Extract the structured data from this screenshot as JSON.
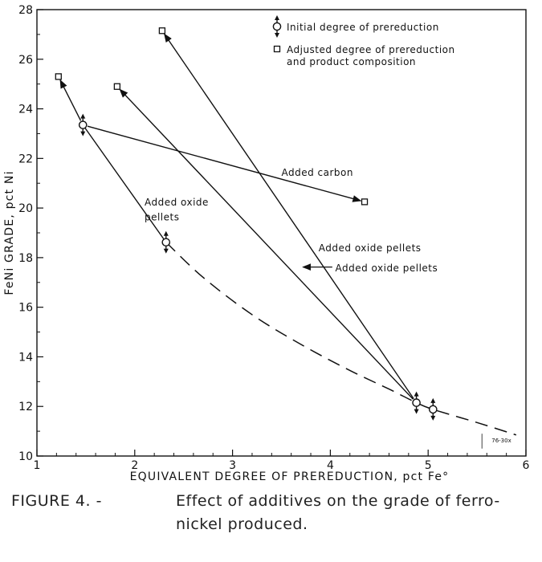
{
  "chart_data": {
    "type": "scatter",
    "xlabel": "EQUIVALENT DEGREE OF PREREDUCTION, pct Fe°",
    "ylabel": "FeNi GRADE, pct Ni",
    "xlim": [
      1,
      6
    ],
    "ylim": [
      10,
      28
    ],
    "x_ticks": [
      1,
      2,
      3,
      4,
      5,
      6
    ],
    "y_ticks": [
      10,
      12,
      14,
      16,
      18,
      20,
      22,
      24,
      26,
      28
    ],
    "grid": false,
    "legend_position": "top-right",
    "series": [
      {
        "name": "Initial degree of prereduction",
        "marker": "circle-with-arrows",
        "points": [
          [
            1.47,
            23.35
          ],
          [
            2.32,
            18.62
          ],
          [
            4.88,
            12.15
          ],
          [
            5.05,
            11.88
          ]
        ]
      },
      {
        "name": "Adjusted degree of prereduction and product composition",
        "marker": "square",
        "points": [
          [
            1.22,
            25.3
          ],
          [
            1.82,
            24.9
          ],
          [
            2.28,
            27.15
          ],
          [
            4.35,
            20.25
          ]
        ]
      }
    ],
    "arrows": [
      {
        "from": [
          1.47,
          23.35
        ],
        "to": [
          1.22,
          25.3
        ]
      },
      {
        "from": [
          1.47,
          23.35
        ],
        "to": [
          4.35,
          20.25
        ]
      },
      {
        "from": [
          4.88,
          12.15
        ],
        "to": [
          1.82,
          24.9
        ]
      },
      {
        "from": [
          4.88,
          12.15
        ],
        "to": [
          2.28,
          27.15
        ]
      }
    ],
    "lines": [
      {
        "style": "solid",
        "points": [
          [
            1.47,
            23.35
          ],
          [
            2.32,
            18.62
          ]
        ]
      }
    ],
    "dashed_curve": [
      [
        2.32,
        18.62
      ],
      [
        2.7,
        17.2
      ],
      [
        3.2,
        15.7
      ],
      [
        3.7,
        14.5
      ],
      [
        4.2,
        13.45
      ],
      [
        4.6,
        12.7
      ],
      [
        4.88,
        12.15
      ],
      [
        5.05,
        11.88
      ],
      [
        5.5,
        11.35
      ],
      [
        5.9,
        10.85
      ]
    ],
    "annotations": [
      {
        "text": "Added carbon",
        "x": 3.5,
        "y": 21.3
      },
      {
        "text": "Added oxide",
        "x": 2.1,
        "y": 20.1
      },
      {
        "text": "pellets",
        "x": 2.1,
        "y": 19.5
      },
      {
        "text": "Added oxide pellets",
        "x": 3.88,
        "y": 18.25
      },
      {
        "text": "Added oxide pellets",
        "x": 4.05,
        "y": 17.45
      }
    ],
    "code": "76-30x"
  },
  "caption": {
    "label": "FIGURE 4. -",
    "line1": "Effect of additives on the grade of ferro-",
    "line2": "nickel produced."
  }
}
